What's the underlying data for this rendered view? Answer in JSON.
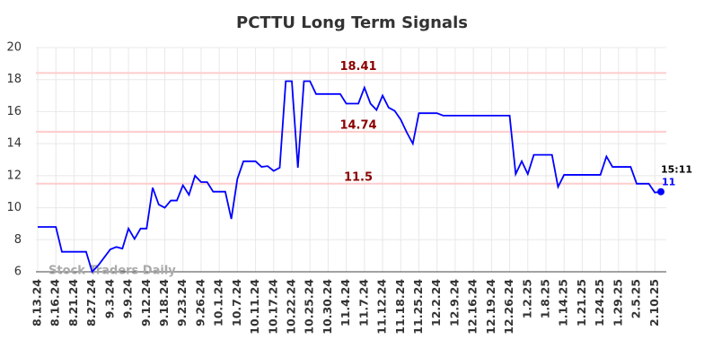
{
  "chart_data": {
    "type": "line",
    "title": "PCTTU Long Term Signals",
    "watermark": "Stock Traders Daily",
    "categories": [
      "8.13.24",
      null,
      null,
      "8.16.24",
      null,
      null,
      "8.21.24",
      null,
      null,
      "8.27.24",
      null,
      null,
      "9.3.24",
      null,
      null,
      "9.9.24",
      null,
      null,
      "9.12.24",
      null,
      null,
      "9.18.24",
      null,
      null,
      "9.23.24",
      null,
      null,
      "9.26.24",
      null,
      null,
      "10.1.24",
      null,
      null,
      "10.7.24",
      null,
      null,
      "10.11.24",
      null,
      null,
      "10.17.24",
      null,
      null,
      "10.22.24",
      null,
      null,
      "10.25.24",
      null,
      null,
      "10.30.24",
      null,
      null,
      "11.4.24",
      null,
      null,
      "11.7.24",
      null,
      null,
      "11.12.24",
      null,
      null,
      "11.18.24",
      null,
      null,
      "11.25.24",
      null,
      null,
      "12.2.24",
      null,
      null,
      "12.9.24",
      null,
      null,
      "12.16.24",
      null,
      null,
      "12.19.24",
      null,
      null,
      "12.26.24",
      null,
      null,
      "1.2.25",
      null,
      null,
      "1.8.25",
      null,
      null,
      "1.14.25",
      null,
      null,
      "1.21.25",
      null,
      null,
      "1.24.25",
      null,
      null,
      "1.29.25",
      null,
      null,
      "2.5.25",
      null,
      null,
      "2.10.25",
      null
    ],
    "values": [
      8.8,
      8.8,
      8.8,
      8.8,
      7.25,
      7.25,
      7.25,
      7.25,
      7.25,
      6.0,
      6.4,
      6.9,
      7.4,
      7.55,
      7.45,
      8.7,
      8.05,
      8.7,
      8.7,
      11.25,
      10.2,
      10.0,
      10.45,
      10.45,
      11.4,
      10.8,
      12.0,
      11.6,
      11.6,
      11.0,
      11.0,
      11.0,
      9.3,
      11.8,
      12.9,
      12.9,
      12.9,
      12.55,
      12.6,
      12.3,
      12.5,
      17.9,
      17.9,
      12.5,
      17.9,
      17.9,
      17.1,
      17.1,
      17.1,
      17.1,
      17.1,
      16.5,
      16.5,
      16.5,
      17.5,
      16.5,
      16.1,
      17.0,
      16.25,
      16.05,
      15.5,
      14.7,
      14.0,
      15.9,
      15.9,
      15.9,
      15.9,
      15.75,
      15.75,
      15.75,
      15.75,
      15.75,
      15.75,
      15.75,
      15.75,
      15.75,
      15.75,
      15.75,
      15.75,
      12.1,
      12.9,
      12.1,
      13.3,
      13.3,
      13.3,
      13.3,
      11.3,
      12.05,
      12.05,
      12.05,
      12.05,
      12.05,
      12.05,
      12.05,
      13.2,
      12.55,
      12.55,
      12.55,
      12.55,
      11.5,
      11.5,
      11.5,
      10.95,
      11
    ],
    "color": "#0000ff",
    "hlines": [
      18.41,
      14.74,
      11.5
    ],
    "hline_color": "#ffcccc",
    "hline_label_color": "#8b0000",
    "last_time": "15:11",
    "ylim": [
      6,
      20
    ],
    "yticks": [
      6,
      8,
      10,
      12,
      14,
      16,
      18,
      20
    ],
    "grid": true
  }
}
